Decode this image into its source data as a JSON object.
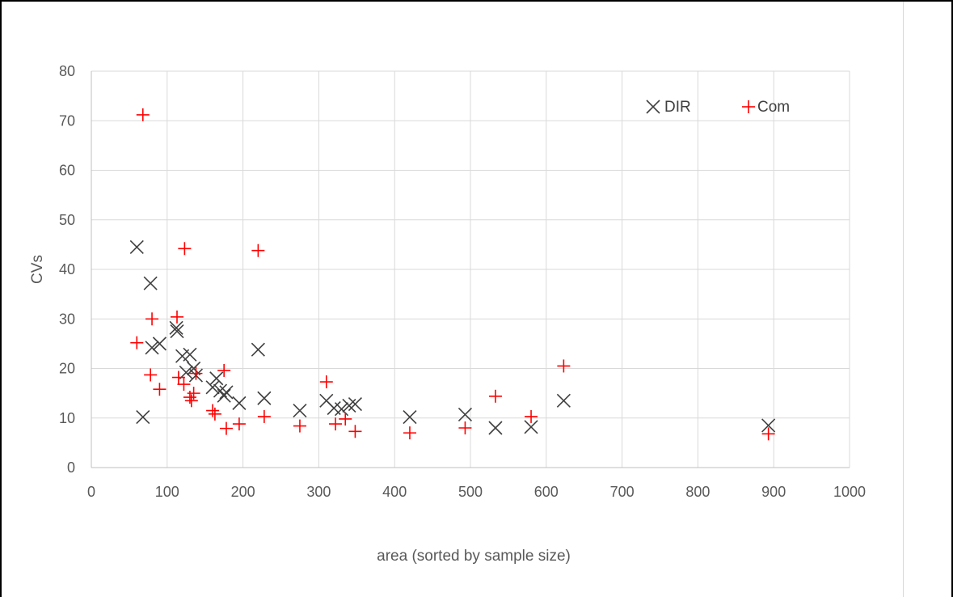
{
  "chart_data": {
    "type": "scatter",
    "xlabel": "area (sorted by sample size)",
    "ylabel": "CVs",
    "xlim": [
      0,
      1000
    ],
    "ylim": [
      0,
      80
    ],
    "x_ticks": [
      0,
      100,
      200,
      300,
      400,
      500,
      600,
      700,
      800,
      900,
      1000
    ],
    "y_ticks": [
      0,
      10,
      20,
      30,
      40,
      50,
      60,
      70,
      80
    ],
    "grid": true,
    "legend_position": "top-right",
    "series": [
      {
        "name": "DIR",
        "marker": "x",
        "color": "#404040",
        "points": [
          [
            60,
            44.5
          ],
          [
            68,
            10.2
          ],
          [
            78,
            37.2
          ],
          [
            80,
            24.2
          ],
          [
            90,
            25
          ],
          [
            112,
            28.2
          ],
          [
            113,
            27.5
          ],
          [
            120,
            22.5
          ],
          [
            125,
            19.2
          ],
          [
            130,
            22.8
          ],
          [
            135,
            20
          ],
          [
            138,
            18.6
          ],
          [
            160,
            16.2
          ],
          [
            165,
            18
          ],
          [
            170,
            15.5
          ],
          [
            175,
            14.5
          ],
          [
            178,
            15.2
          ],
          [
            195,
            13
          ],
          [
            220,
            23.8
          ],
          [
            228,
            14
          ],
          [
            275,
            11.5
          ],
          [
            310,
            13.5
          ],
          [
            320,
            12
          ],
          [
            330,
            11.8
          ],
          [
            340,
            12.5
          ],
          [
            348,
            12.8
          ],
          [
            420,
            10.2
          ],
          [
            493,
            10.7
          ],
          [
            533,
            8
          ],
          [
            580,
            8.2
          ],
          [
            623,
            13.5
          ],
          [
            893,
            8.5
          ]
        ]
      },
      {
        "name": "Com",
        "marker": "+",
        "color": "#ff0000",
        "points": [
          [
            60,
            25.2
          ],
          [
            68,
            71.2
          ],
          [
            78,
            18.7
          ],
          [
            80,
            30
          ],
          [
            90,
            15.8
          ],
          [
            113,
            30.4
          ],
          [
            115,
            18.2
          ],
          [
            122,
            16.8
          ],
          [
            123,
            44.2
          ],
          [
            130,
            14.2
          ],
          [
            132,
            13.5
          ],
          [
            135,
            15
          ],
          [
            138,
            19
          ],
          [
            160,
            11.5
          ],
          [
            163,
            10.8
          ],
          [
            175,
            19.6
          ],
          [
            178,
            7.9
          ],
          [
            195,
            8.8
          ],
          [
            220,
            43.8
          ],
          [
            228,
            10.3
          ],
          [
            275,
            8.4
          ],
          [
            310,
            17.3
          ],
          [
            322,
            8.8
          ],
          [
            335,
            9.8
          ],
          [
            348,
            7.3
          ],
          [
            420,
            7
          ],
          [
            493,
            8
          ],
          [
            533,
            14.4
          ],
          [
            580,
            10.3
          ],
          [
            623,
            20.5
          ],
          [
            893,
            6.8
          ]
        ]
      }
    ]
  }
}
